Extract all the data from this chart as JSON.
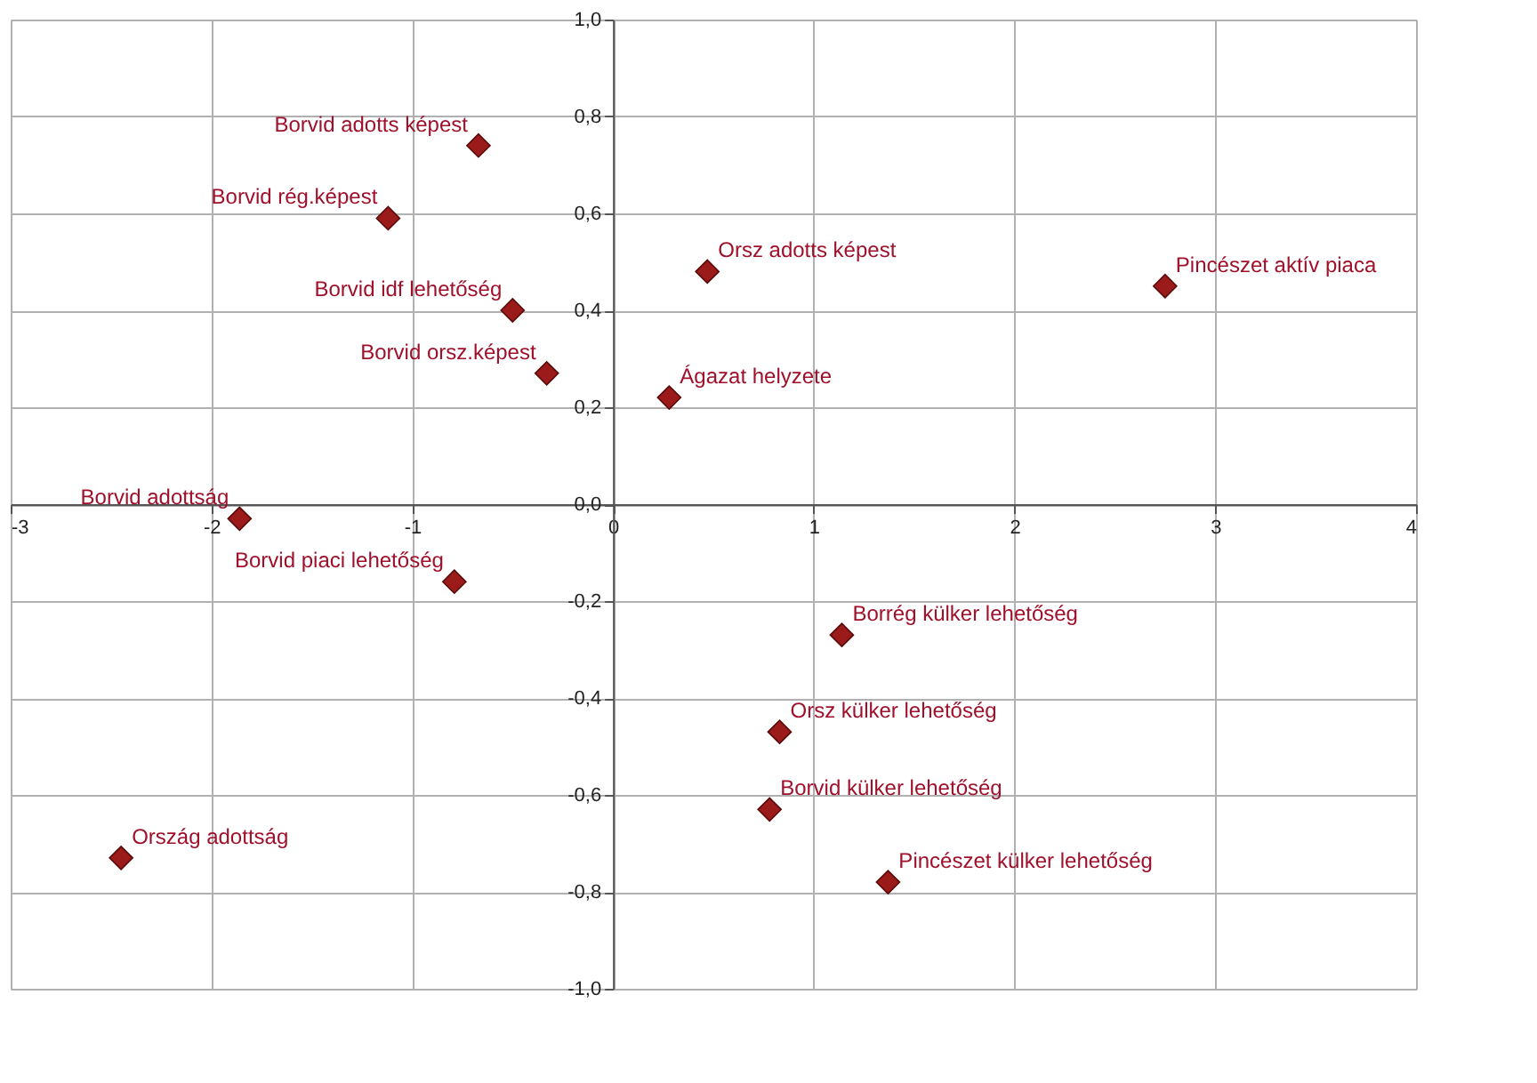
{
  "chart_data": {
    "type": "scatter",
    "marker": "diamond",
    "grid": true,
    "legend": false,
    "xlim": [
      -3,
      4
    ],
    "ylim": [
      -1,
      1
    ],
    "xticks": [
      -3,
      -2,
      -1,
      0,
      1,
      2,
      3,
      4
    ],
    "yticks": [
      {
        "value": -1,
        "label": "-1,0"
      },
      {
        "value": -0.8,
        "label": "-0,8"
      },
      {
        "value": -0.6,
        "label": "-0,6"
      },
      {
        "value": -0.4,
        "label": "-0,4"
      },
      {
        "value": -0.2,
        "label": "-0,2"
      },
      {
        "value": 0,
        "label": "0,0"
      },
      {
        "value": 0.2,
        "label": "0,2"
      },
      {
        "value": 0.4,
        "label": "0,4"
      },
      {
        "value": 0.6,
        "label": "0,6"
      },
      {
        "value": 0.8,
        "label": "0,8"
      },
      {
        "value": 1,
        "label": "1,0"
      }
    ],
    "series": [
      {
        "color": "#9b1b1b",
        "x": [
          -0.67,
          -1.12,
          -0.5,
          -0.33,
          0.47,
          0.28,
          2.75,
          -1.86,
          -0.79,
          1.14,
          0.83,
          0.78,
          1.37,
          -2.45
        ],
        "values": [
          0.74,
          0.59,
          0.4,
          0.27,
          0.48,
          0.22,
          0.45,
          -0.03,
          -0.16,
          -0.27,
          -0.47,
          -0.63,
          -0.78,
          -0.73
        ]
      }
    ],
    "annotations": [
      {
        "text": "Borvid adotts képest",
        "x": -0.67,
        "y": 0.74
      },
      {
        "text": "Borvid rég.képest",
        "x": -1.12,
        "y": 0.59
      },
      {
        "text": "Borvid idf lehetőség",
        "x": -0.5,
        "y": 0.4
      },
      {
        "text": "Borvid orsz.képest",
        "x": -0.33,
        "y": 0.27
      },
      {
        "text": "Orsz adotts képest",
        "x": 0.47,
        "y": 0.48
      },
      {
        "text": "Ágazat helyzete",
        "x": 0.28,
        "y": 0.22
      },
      {
        "text": "Pincészet aktív piaca",
        "x": 2.75,
        "y": 0.45
      },
      {
        "text": "Borvid adottság",
        "x": -1.86,
        "y": -0.03
      },
      {
        "text": "Borvid piaci lehetőség",
        "x": -0.79,
        "y": -0.16
      },
      {
        "text": "Borrég külker lehetőség",
        "x": 1.14,
        "y": -0.27
      },
      {
        "text": "Orsz külker lehetőség",
        "x": 0.83,
        "y": -0.47
      },
      {
        "text": "Borvid külker lehetőség",
        "x": 0.78,
        "y": -0.63
      },
      {
        "text": "Pincészet külker lehetőség",
        "x": 1.37,
        "y": -0.78
      },
      {
        "text": "Ország adottság",
        "x": -2.45,
        "y": -0.73
      }
    ]
  }
}
